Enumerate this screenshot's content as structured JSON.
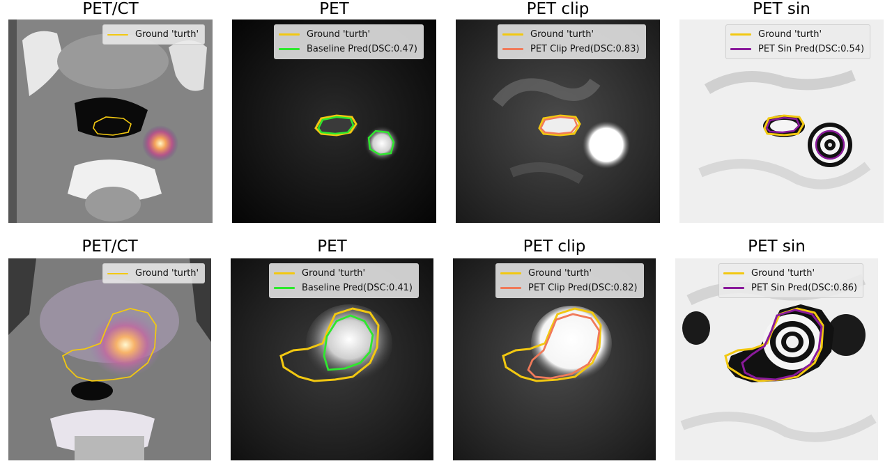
{
  "rows": [
    {
      "panels": [
        {
          "title": "PET/CT",
          "legend": [
            {
              "label": "Ground 'turth'",
              "color": "#f2c811"
            }
          ]
        },
        {
          "title": "PET",
          "legend": [
            {
              "label": "Ground 'turth'",
              "color": "#f2c811"
            },
            {
              "label": "Baseline Pred(DSC:0.47)",
              "color": "#2ee82e"
            }
          ]
        },
        {
          "title": "PET clip",
          "legend": [
            {
              "label": "Ground 'turth'",
              "color": "#f2c811"
            },
            {
              "label": "PET Clip Pred(DSC:0.83)",
              "color": "#f07a5a"
            }
          ]
        },
        {
          "title": "PET sin",
          "legend": [
            {
              "label": "Ground 'turth'",
              "color": "#f2c811"
            },
            {
              "label": "PET Sin Pred(DSC:0.54)",
              "color": "#8a1a9b"
            }
          ]
        }
      ]
    },
    {
      "panels": [
        {
          "title": "PET/CT",
          "legend": [
            {
              "label": "Ground 'turth'",
              "color": "#f2c811"
            }
          ]
        },
        {
          "title": "PET",
          "legend": [
            {
              "label": "Ground 'turth'",
              "color": "#f2c811"
            },
            {
              "label": "Baseline Pred(DSC:0.41)",
              "color": "#2ee82e"
            }
          ]
        },
        {
          "title": "PET clip",
          "legend": [
            {
              "label": "Ground 'turth'",
              "color": "#f2c811"
            },
            {
              "label": "PET Clip Pred(DSC:0.82)",
              "color": "#f07a5a"
            }
          ]
        },
        {
          "title": "PET sin",
          "legend": [
            {
              "label": "Ground 'turth'",
              "color": "#f2c811"
            },
            {
              "label": "PET Sin Pred(DSC:0.86)",
              "color": "#8a1a9b"
            }
          ]
        }
      ]
    }
  ]
}
